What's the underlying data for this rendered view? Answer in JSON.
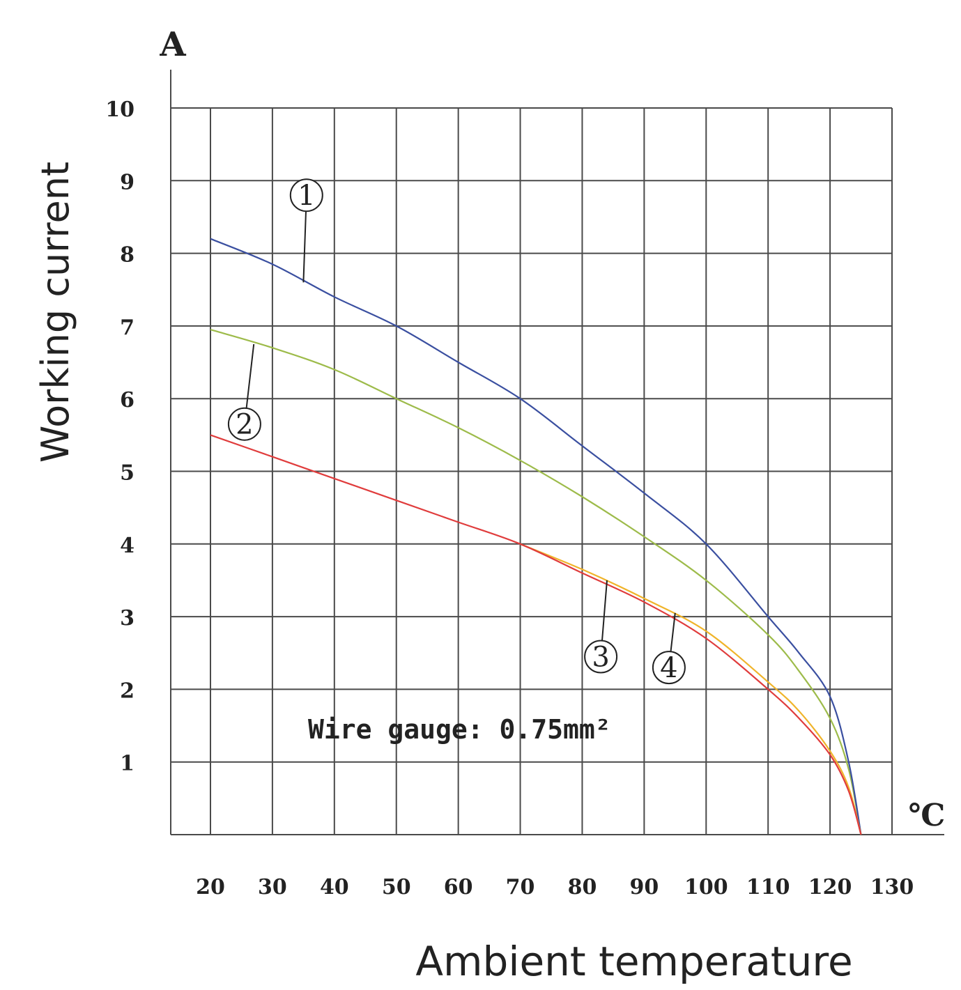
{
  "chart_data": {
    "type": "line",
    "xlabel": "Ambient temperature",
    "ylabel": "Working current",
    "x_unit": "℃",
    "y_unit": "A",
    "note": "Wire gauge: 0.75mm²",
    "xlim": [
      20,
      130
    ],
    "ylim": [
      0,
      10
    ],
    "x_ticks": [
      "20",
      "30",
      "40",
      "50",
      "60",
      "70",
      "80",
      "90",
      "100",
      "110",
      "120",
      "130"
    ],
    "y_ticks": [
      "1",
      "2",
      "3",
      "4",
      "5",
      "6",
      "7",
      "8",
      "9",
      "10"
    ],
    "grid": true,
    "series": [
      {
        "name": "1",
        "color": "#3a4fa0",
        "x": [
          20,
          30,
          40,
          50,
          60,
          70,
          80,
          90,
          100,
          110,
          115,
          120,
          123,
          125
        ],
        "y": [
          8.2,
          7.85,
          7.4,
          7.0,
          6.5,
          6.0,
          5.35,
          4.7,
          4.0,
          3.0,
          2.5,
          1.9,
          1.0,
          0
        ]
      },
      {
        "name": "2",
        "color": "#9dbb4a",
        "x": [
          20,
          30,
          40,
          50,
          60,
          70,
          80,
          90,
          100,
          110,
          115,
          120,
          123,
          125
        ],
        "y": [
          6.95,
          6.7,
          6.4,
          6.0,
          5.6,
          5.15,
          4.65,
          4.1,
          3.5,
          2.75,
          2.25,
          1.6,
          0.9,
          0
        ]
      },
      {
        "name": "3",
        "color": "#e03c3c",
        "x": [
          20,
          30,
          40,
          50,
          60,
          70,
          80,
          90,
          100,
          110,
          115,
          120,
          123,
          125
        ],
        "y": [
          5.5,
          5.2,
          4.9,
          4.6,
          4.3,
          4.0,
          3.6,
          3.2,
          2.7,
          2.0,
          1.6,
          1.1,
          0.6,
          0
        ]
      },
      {
        "name": "4",
        "color": "#f0b42a",
        "x": [
          70,
          80,
          90,
          100,
          110,
          115,
          120,
          123,
          125
        ],
        "y": [
          4.0,
          3.65,
          3.25,
          2.8,
          2.1,
          1.7,
          1.15,
          0.65,
          0
        ]
      }
    ],
    "markers": [
      {
        "label": "1",
        "series": "1",
        "x": 35,
        "y": 7.6,
        "label_x": 35.5,
        "label_y": 8.8
      },
      {
        "label": "2",
        "series": "2",
        "x": 27,
        "y": 6.75,
        "label_x": 25.5,
        "label_y": 5.65
      },
      {
        "label": "3",
        "series": "3",
        "x": 84,
        "y": 3.5,
        "label_x": 83,
        "label_y": 2.45
      },
      {
        "label": "4",
        "series": "4",
        "x": 95,
        "y": 3.05,
        "label_x": 94,
        "label_y": 2.3
      }
    ]
  }
}
